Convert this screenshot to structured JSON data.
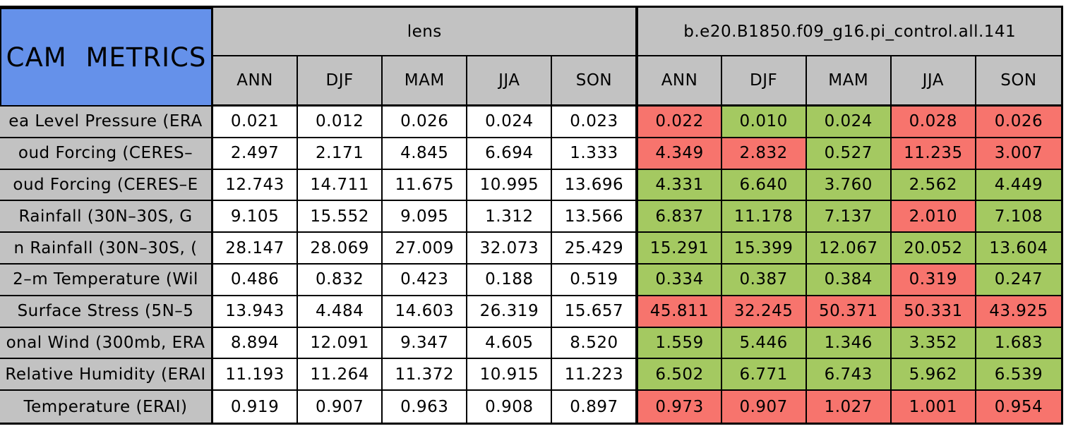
{
  "chart_data": {
    "type": "table",
    "title": "CAM METRICS",
    "column_groups": [
      {
        "label": "lens"
      },
      {
        "label": "b.e20.B1850.f09_g16.pi_control.all.141"
      }
    ],
    "season_columns": [
      "ANN",
      "DJF",
      "MAM",
      "JJA",
      "SON"
    ],
    "rows": [
      {
        "label": "ea Level Pressure (ERA",
        "lens": [
          "0.021",
          "0.012",
          "0.026",
          "0.024",
          "0.023"
        ],
        "run": [
          "0.022",
          "0.010",
          "0.024",
          "0.028",
          "0.026"
        ],
        "run_status": [
          "worse",
          "better",
          "better",
          "worse",
          "worse"
        ]
      },
      {
        "label": "oud Forcing (CERES–",
        "lens": [
          "2.497",
          "2.171",
          "4.845",
          "6.694",
          "1.333"
        ],
        "run": [
          "4.349",
          "2.832",
          "0.527",
          "11.235",
          "3.007"
        ],
        "run_status": [
          "worse",
          "worse",
          "better",
          "worse",
          "worse"
        ]
      },
      {
        "label": "oud Forcing (CERES–E",
        "lens": [
          "12.743",
          "14.711",
          "11.675",
          "10.995",
          "13.696"
        ],
        "run": [
          "4.331",
          "6.640",
          "3.760",
          "2.562",
          "4.449"
        ],
        "run_status": [
          "better",
          "better",
          "better",
          "better",
          "better"
        ]
      },
      {
        "label": "Rainfall (30N–30S, G",
        "lens": [
          "9.105",
          "15.552",
          "9.095",
          "1.312",
          "13.566"
        ],
        "run": [
          "6.837",
          "11.178",
          "7.137",
          "2.010",
          "7.108"
        ],
        "run_status": [
          "better",
          "better",
          "better",
          "worse",
          "better"
        ]
      },
      {
        "label": "n Rainfall (30N–30S, (",
        "lens": [
          "28.147",
          "28.069",
          "27.009",
          "32.073",
          "25.429"
        ],
        "run": [
          "15.291",
          "15.399",
          "12.067",
          "20.052",
          "13.604"
        ],
        "run_status": [
          "better",
          "better",
          "better",
          "better",
          "better"
        ]
      },
      {
        "label": "2–m Temperature (Wil",
        "lens": [
          "0.486",
          "0.832",
          "0.423",
          "0.188",
          "0.519"
        ],
        "run": [
          "0.334",
          "0.387",
          "0.384",
          "0.319",
          "0.247"
        ],
        "run_status": [
          "better",
          "better",
          "better",
          "worse",
          "better"
        ]
      },
      {
        "label": "Surface Stress (5N–5",
        "lens": [
          "13.943",
          "4.484",
          "14.603",
          "26.319",
          "15.657"
        ],
        "run": [
          "45.811",
          "32.245",
          "50.371",
          "50.331",
          "43.925"
        ],
        "run_status": [
          "worse",
          "worse",
          "worse",
          "worse",
          "worse"
        ]
      },
      {
        "label": "onal Wind (300mb, ERA",
        "lens": [
          "8.894",
          "12.091",
          "9.347",
          "4.605",
          "8.520"
        ],
        "run": [
          "1.559",
          "5.446",
          "1.346",
          "3.352",
          "1.683"
        ],
        "run_status": [
          "better",
          "better",
          "better",
          "better",
          "better"
        ]
      },
      {
        "label": "Relative Humidity (ERAI",
        "lens": [
          "11.193",
          "11.264",
          "11.372",
          "10.915",
          "11.223"
        ],
        "run": [
          "6.502",
          "6.771",
          "6.743",
          "5.962",
          "6.539"
        ],
        "run_status": [
          "better",
          "better",
          "better",
          "better",
          "better"
        ]
      },
      {
        "label": "Temperature (ERAI)",
        "lens": [
          "0.919",
          "0.907",
          "0.963",
          "0.908",
          "0.897"
        ],
        "run": [
          "0.973",
          "0.907",
          "1.027",
          "1.001",
          "0.954"
        ],
        "run_status": [
          "worse",
          "worse",
          "worse",
          "worse",
          "worse"
        ]
      }
    ],
    "layout": {
      "grid": "on",
      "legend": "none"
    },
    "colors": {
      "title_bg": "#6591ea",
      "header_bg": "#c2c2c2",
      "lens_cell_bg": "#ffffff",
      "better_bg": "#a4c961",
      "worse_bg": "#f7746d",
      "border": "#000000"
    }
  }
}
